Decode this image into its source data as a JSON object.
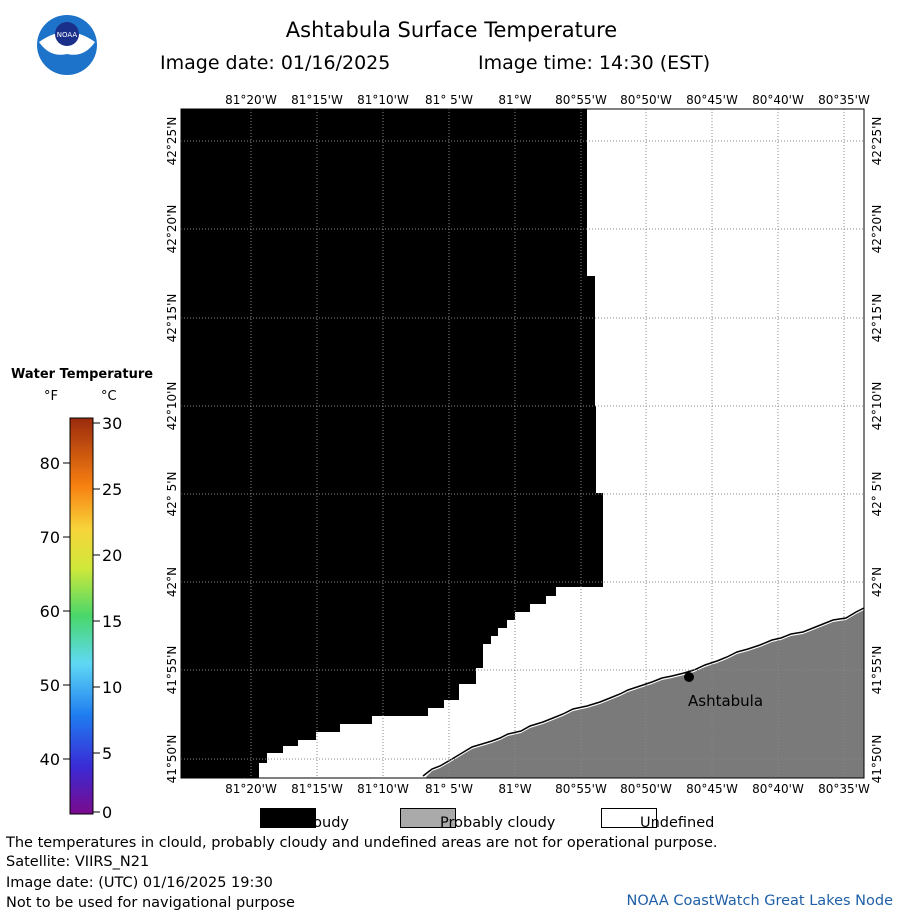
{
  "header": {
    "title": "Ashtabula Surface Temperature",
    "image_date": "Image date: 01/16/2025",
    "image_time": "Image time: 14:30 (EST)"
  },
  "logo": {
    "text": "NOAA",
    "icon": "noaa-logo-icon"
  },
  "map": {
    "lon_labels": [
      "81°20'W",
      "81°15'W",
      "81°10'W",
      "81° 5'W",
      "81°W",
      "80°55'W",
      "80°50'W",
      "80°45'W",
      "80°40'W",
      "80°35'W"
    ],
    "lat_labels": [
      "42°25'N",
      "42°20'N",
      "42°15'N",
      "42°10'N",
      "42° 5'N",
      "42°N",
      "41°55'N",
      "41°50'N"
    ],
    "city_label": "Ashtabula",
    "colors": {
      "cloudy": "#000000",
      "land": "#7a7a7a",
      "undefined": "#ffffff",
      "grid": "#888888"
    }
  },
  "colorbar": {
    "title": "Water Temperature",
    "unit_f": "°F",
    "unit_c": "°C",
    "celsius_ticks": [
      "30",
      "25",
      "20",
      "15",
      "10",
      "5",
      "0"
    ],
    "fahrenheit_ticks": [
      "80",
      "70",
      "60",
      "50",
      "40"
    ]
  },
  "key": {
    "cloudy": "Cloudy",
    "probably_cloudy": "Probably cloudy",
    "undefined": "Undefined",
    "colors": {
      "cloudy": "#000000",
      "probably_cloudy": "#aaaaaa",
      "undefined": "#ffffff"
    }
  },
  "footer": {
    "note": "The temperatures in clould, probably cloudy and undefined areas are not for operational purpose.",
    "satellite": "Satellite: VIIRS_N21",
    "utc_date": "Image date: (UTC) 01/16/2025  19:30",
    "nav_warning": "Not to be used for navigational purpose",
    "credit": "NOAA CoastWatch Great Lakes Node"
  }
}
